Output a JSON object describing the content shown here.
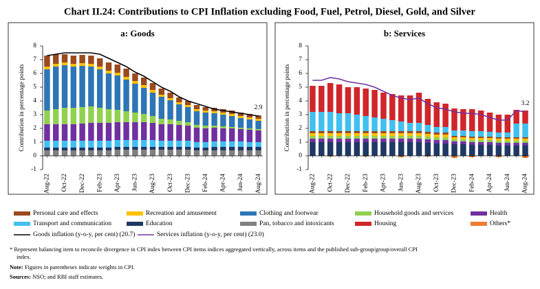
{
  "title": "Chart II.24: Contributions to CPI Inflation excluding Food, Fuel, Petrol, Diesel, Gold, and Silver",
  "chart_data": [
    {
      "type": "bar",
      "stacked": true,
      "title": "a: Goods",
      "ylabel": "Contribution in percentage points",
      "categories": [
        "Aug-22",
        null,
        "Oct-22",
        null,
        "Dec-22",
        null,
        "Feb-23",
        null,
        "Apr-23",
        null,
        "Jun-23",
        null,
        "Aug-23",
        null,
        "Oct-23",
        null,
        "Dec-23",
        null,
        "Feb-24",
        null,
        "Apr-24",
        null,
        "Jun-24",
        null,
        "Aug-24"
      ],
      "ylim": [
        -1,
        8
      ],
      "yticks": [
        -1,
        0,
        1,
        2,
        3,
        4,
        5,
        6,
        7,
        8
      ],
      "series": [
        {
          "name": "Personal care and effects",
          "color": "#9b4a1f",
          "values": [
            0.8,
            0.7,
            0.6,
            0.6,
            0.6,
            0.6,
            0.6,
            0.6,
            0.6,
            0.6,
            0.55,
            0.55,
            0.5,
            0.45,
            0.4,
            0.35,
            0.3,
            0.3,
            0.25,
            0.25,
            0.25,
            0.25,
            0.25,
            0.25,
            0.25
          ]
        },
        {
          "name": "Recreation and amusement",
          "color": "#ffc000",
          "values": [
            0.2,
            0.2,
            0.2,
            0.2,
            0.2,
            0.2,
            0.2,
            0.2,
            0.2,
            0.2,
            0.2,
            0.2,
            0.2,
            0.15,
            0.15,
            0.15,
            0.15,
            0.15,
            0.15,
            0.15,
            0.15,
            0.15,
            0.15,
            0.15,
            0.15
          ]
        },
        {
          "name": "Clothing and footwear",
          "color": "#2e75b6",
          "values": [
            3.0,
            3.1,
            3.1,
            3.0,
            3.0,
            2.9,
            2.8,
            2.6,
            2.5,
            2.3,
            2.1,
            1.9,
            1.7,
            1.6,
            1.4,
            1.2,
            1.1,
            1.0,
            0.95,
            0.9,
            0.85,
            0.8,
            0.7,
            0.65,
            0.6
          ]
        },
        {
          "name": "Household goods and services",
          "color": "#92d050",
          "values": [
            1.0,
            1.1,
            1.2,
            1.2,
            1.2,
            1.2,
            1.1,
            1.0,
            0.9,
            0.8,
            0.7,
            0.6,
            0.5,
            0.4,
            0.35,
            0.3,
            0.25,
            0.2,
            0.2,
            0.15,
            0.15,
            0.1,
            0.1,
            0.1,
            0.1
          ]
        },
        {
          "name": "Health",
          "color": "#7030a0",
          "values": [
            1.2,
            1.2,
            1.2,
            1.2,
            1.25,
            1.3,
            1.3,
            1.3,
            1.3,
            1.3,
            1.3,
            1.3,
            1.25,
            1.2,
            1.2,
            1.15,
            1.1,
            1.05,
            1.0,
            1.0,
            0.95,
            0.95,
            0.9,
            0.9,
            0.85
          ]
        },
        {
          "name": "Transport and communication",
          "color": "#41c0f0",
          "values": [
            0.5,
            0.5,
            0.5,
            0.5,
            0.5,
            0.5,
            0.5,
            0.5,
            0.5,
            0.5,
            0.5,
            0.5,
            0.5,
            0.45,
            0.45,
            0.45,
            0.45,
            0.4,
            0.4,
            0.4,
            0.4,
            0.4,
            0.4,
            0.35,
            0.35
          ]
        },
        {
          "name": "Education",
          "color": "#1f3864",
          "values": [
            0.2,
            0.2,
            0.2,
            0.2,
            0.2,
            0.2,
            0.2,
            0.2,
            0.2,
            0.2,
            0.2,
            0.2,
            0.2,
            0.2,
            0.2,
            0.2,
            0.2,
            0.2,
            0.2,
            0.25,
            0.25,
            0.25,
            0.25,
            0.25,
            0.25
          ]
        },
        {
          "name": "Pan, tobacco and intoxicants",
          "color": "#808080",
          "values": [
            0.4,
            0.4,
            0.4,
            0.4,
            0.4,
            0.4,
            0.4,
            0.4,
            0.45,
            0.45,
            0.45,
            0.45,
            0.45,
            0.45,
            0.45,
            0.45,
            0.45,
            0.4,
            0.4,
            0.4,
            0.4,
            0.4,
            0.4,
            0.4,
            0.4
          ]
        }
      ],
      "line": {
        "name": "Goods inflation (y-o-y, per cent) (20.7)",
        "color": "#000000",
        "values": [
          7.3,
          7.4,
          7.5,
          7.5,
          7.5,
          7.5,
          7.4,
          7.1,
          6.8,
          6.5,
          6.1,
          5.8,
          5.4,
          5.0,
          4.7,
          4.3,
          4.0,
          3.8,
          3.6,
          3.4,
          3.3,
          3.2,
          3.1,
          3.0,
          2.9
        ]
      }
    },
    {
      "type": "bar",
      "stacked": true,
      "title": "b: Services",
      "ylabel": "Contribution in percentage points",
      "categories": [
        "Aug-22",
        null,
        "Oct-22",
        null,
        "Dec-22",
        null,
        "Feb-23",
        null,
        "Apr-23",
        null,
        "Jun-23",
        null,
        "Aug-23",
        null,
        "Oct-23",
        null,
        "Dec-23",
        null,
        "Feb-24",
        null,
        "Apr-24",
        null,
        "Jun-24",
        null,
        "Aug-24"
      ],
      "ylim": [
        -1,
        8
      ],
      "yticks": [
        -1,
        0,
        1,
        2,
        3,
        4,
        5,
        6,
        7,
        8
      ],
      "series": [
        {
          "name": "Housing",
          "color": "#d0262a",
          "values": [
            1.9,
            1.9,
            2.1,
            2.1,
            1.9,
            2.0,
            2.0,
            2.0,
            1.9,
            1.9,
            1.9,
            2.0,
            2.2,
            1.9,
            1.8,
            1.7,
            1.6,
            1.55,
            1.6,
            1.5,
            1.4,
            1.3,
            1.3,
            1.0,
            0.95
          ]
        },
        {
          "name": "Transport and communication",
          "color": "#41c0f0",
          "values": [
            1.4,
            1.4,
            1.4,
            1.3,
            1.3,
            1.2,
            1.1,
            1.0,
            0.9,
            0.8,
            0.7,
            0.6,
            0.6,
            0.5,
            0.4,
            0.4,
            0.4,
            0.4,
            0.4,
            0.4,
            0.35,
            0.35,
            0.35,
            1.0,
            1.0
          ]
        },
        {
          "name": "Personal care and effects",
          "color": "#9b4a1f",
          "values": [
            0.15,
            0.15,
            0.15,
            0.15,
            0.15,
            0.15,
            0.15,
            0.15,
            0.15,
            0.15,
            0.15,
            0.15,
            0.15,
            0.15,
            0.15,
            0.15,
            0.1,
            0.1,
            0.1,
            0.1,
            0.1,
            0.1,
            0.1,
            0.1,
            0.1
          ]
        },
        {
          "name": "Recreation and amusement",
          "color": "#ffc000",
          "values": [
            0.2,
            0.2,
            0.2,
            0.2,
            0.2,
            0.2,
            0.2,
            0.2,
            0.2,
            0.2,
            0.2,
            0.2,
            0.2,
            0.2,
            0.2,
            0.2,
            0.15,
            0.15,
            0.15,
            0.15,
            0.15,
            0.15,
            0.15,
            0.15,
            0.15
          ]
        },
        {
          "name": "Household goods and services",
          "color": "#92d050",
          "values": [
            0.2,
            0.2,
            0.2,
            0.2,
            0.2,
            0.2,
            0.2,
            0.2,
            0.2,
            0.2,
            0.2,
            0.2,
            0.2,
            0.2,
            0.2,
            0.2,
            0.15,
            0.15,
            0.15,
            0.15,
            0.15,
            0.15,
            0.15,
            0.15,
            0.15
          ]
        },
        {
          "name": "Health",
          "color": "#7030a0",
          "values": [
            0.25,
            0.25,
            0.25,
            0.25,
            0.25,
            0.25,
            0.25,
            0.25,
            0.25,
            0.25,
            0.25,
            0.25,
            0.25,
            0.25,
            0.25,
            0.25,
            0.2,
            0.2,
            0.2,
            0.2,
            0.2,
            0.2,
            0.2,
            0.2,
            0.2
          ]
        },
        {
          "name": "Education",
          "color": "#1f3864",
          "values": [
            1.0,
            1.0,
            1.0,
            1.0,
            1.0,
            1.0,
            1.0,
            1.0,
            1.0,
            1.0,
            1.0,
            1.0,
            1.0,
            0.95,
            0.9,
            0.9,
            0.85,
            0.85,
            0.8,
            0.8,
            0.8,
            0.75,
            0.75,
            0.75,
            0.75
          ]
        },
        {
          "name": "Others*",
          "color": "#ed7d31",
          "values": [
            0,
            0,
            -0.05,
            0,
            0,
            0,
            -0.05,
            0,
            0,
            0,
            -0.1,
            0,
            0,
            -0.05,
            0,
            0,
            -0.15,
            0,
            -0.1,
            0,
            0,
            -0.1,
            0,
            0,
            -0.15
          ]
        }
      ],
      "line": {
        "name": "Services inflation (y-o-y, per cent) (23.0)",
        "color": "#7030a0",
        "values": [
          5.5,
          5.5,
          5.7,
          5.6,
          5.4,
          5.3,
          5.2,
          5.0,
          4.7,
          4.4,
          4.2,
          4.1,
          4.2,
          3.8,
          3.5,
          3.4,
          3.2,
          3.1,
          3.1,
          3.0,
          2.8,
          2.6,
          2.6,
          3.3,
          3.2
        ]
      }
    }
  ],
  "footnote": "* Represent balancing item to reconcile divergence in CPI index between CPI items indices aggregated vertically, across items and the published sub-group/group/overall CPI index.",
  "note": {
    "label": "Note:",
    "text": "Figures in parentheses indicate weights in CPI."
  },
  "sources": {
    "label": "Sources:",
    "text": "NSO; and RBI staff estimates."
  }
}
